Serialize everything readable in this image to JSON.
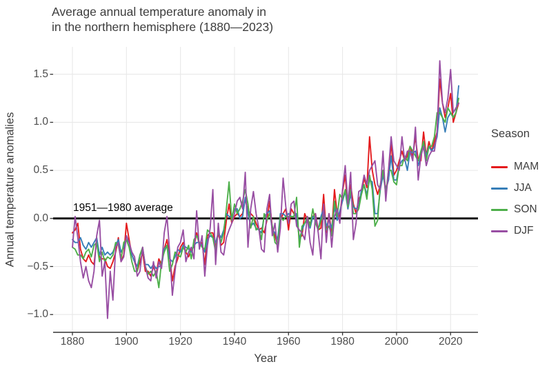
{
  "header": {
    "title_line1": "Average annual temperature anomaly in",
    "title_line2": "in the northern hemisphere (1880—2023)"
  },
  "chart_data": {
    "type": "line",
    "title": "Average annual temperature anomaly in in the northern hemisphere (1880—2023)",
    "xlabel": "Year",
    "ylabel": "Annual temperature anomalies",
    "legend_title": "Season",
    "legend_position": "right",
    "grid": true,
    "xlim": [
      1873,
      2030
    ],
    "ylim": [
      -1.19,
      1.79
    ],
    "x_ticks": [
      1880,
      1900,
      1920,
      1940,
      1960,
      1980,
      2000,
      2020
    ],
    "y_tick_values": [
      1.5,
      1.0,
      0.5,
      0.0,
      -0.5,
      -1.0
    ],
    "y_tick_labels": [
      "1.5",
      "1.0",
      "0.5",
      "0.0",
      "−0.5",
      "−1.0"
    ],
    "reference_line": {
      "y": 0,
      "label": "1951—1980 average",
      "color": "#000000"
    },
    "years": [
      1880,
      1881,
      1882,
      1883,
      1884,
      1885,
      1886,
      1887,
      1888,
      1889,
      1890,
      1891,
      1892,
      1893,
      1894,
      1895,
      1896,
      1897,
      1898,
      1899,
      1900,
      1901,
      1902,
      1903,
      1904,
      1905,
      1906,
      1907,
      1908,
      1909,
      1910,
      1911,
      1912,
      1913,
      1914,
      1915,
      1916,
      1917,
      1918,
      1919,
      1920,
      1921,
      1922,
      1923,
      1924,
      1925,
      1926,
      1927,
      1928,
      1929,
      1930,
      1931,
      1932,
      1933,
      1934,
      1935,
      1936,
      1937,
      1938,
      1939,
      1940,
      1941,
      1942,
      1943,
      1944,
      1945,
      1946,
      1947,
      1948,
      1949,
      1950,
      1951,
      1952,
      1953,
      1954,
      1955,
      1956,
      1957,
      1958,
      1959,
      1960,
      1961,
      1962,
      1963,
      1964,
      1965,
      1966,
      1967,
      1968,
      1969,
      1970,
      1971,
      1972,
      1973,
      1974,
      1975,
      1976,
      1977,
      1978,
      1979,
      1980,
      1981,
      1982,
      1983,
      1984,
      1985,
      1986,
      1987,
      1988,
      1989,
      1990,
      1991,
      1992,
      1993,
      1994,
      1995,
      1996,
      1997,
      1998,
      1999,
      2000,
      2001,
      2002,
      2003,
      2004,
      2005,
      2006,
      2007,
      2008,
      2009,
      2010,
      2011,
      2012,
      2013,
      2014,
      2015,
      2016,
      2017,
      2018,
      2019,
      2020,
      2021,
      2022,
      2023
    ],
    "series": [
      {
        "name": "MAM",
        "color": "#E41A1C",
        "values": [
          -0.15,
          -0.12,
          -0.05,
          -0.32,
          -0.42,
          -0.45,
          -0.38,
          -0.45,
          -0.48,
          -0.22,
          -0.4,
          -0.42,
          -0.42,
          -0.5,
          -0.52,
          -0.45,
          -0.35,
          -0.2,
          -0.45,
          -0.38,
          -0.05,
          -0.22,
          -0.38,
          -0.45,
          -0.55,
          -0.45,
          -0.35,
          -0.55,
          -0.55,
          -0.6,
          -0.5,
          -0.58,
          -0.42,
          -0.48,
          -0.32,
          -0.22,
          -0.4,
          -0.65,
          -0.5,
          -0.42,
          -0.3,
          -0.25,
          -0.35,
          -0.4,
          -0.32,
          -0.3,
          -0.15,
          -0.28,
          -0.25,
          -0.48,
          -0.18,
          -0.15,
          -0.15,
          -0.3,
          -0.15,
          -0.28,
          -0.25,
          -0.02,
          0.15,
          -0.05,
          0.02,
          0.05,
          0.02,
          0.05,
          0.2,
          0.08,
          0.05,
          0.02,
          -0.05,
          -0.12,
          -0.1,
          -0.15,
          -0.02,
          0.18,
          -0.1,
          -0.18,
          -0.28,
          -0.02,
          0.05,
          0.1,
          -0.12,
          0.1,
          0.05,
          0.02,
          -0.2,
          -0.18,
          0.05,
          -0.02,
          -0.05,
          0.02,
          0.05,
          -0.12,
          -0.1,
          0.25,
          -0.15,
          0.05,
          -0.15,
          0.3,
          0.05,
          0.02,
          0.28,
          0.45,
          0.1,
          0.35,
          0.15,
          0.05,
          0.2,
          0.25,
          0.42,
          0.32,
          0.85,
          0.5,
          0.35,
          0.25,
          0.35,
          0.5,
          0.3,
          0.4,
          0.8,
          0.45,
          0.5,
          0.6,
          0.7,
          0.6,
          0.65,
          0.75,
          0.65,
          0.85,
          0.6,
          0.6,
          0.9,
          0.65,
          0.8,
          0.7,
          0.8,
          0.9,
          1.45,
          1.2,
          1.05,
          1.15,
          1.3,
          1.0,
          1.1,
          1.2
        ]
      },
      {
        "name": "JJA",
        "color": "#377EB8",
        "values": [
          -0.22,
          -0.25,
          -0.25,
          -0.2,
          -0.28,
          -0.32,
          -0.25,
          -0.3,
          -0.25,
          -0.2,
          -0.38,
          -0.3,
          -0.38,
          -0.35,
          -0.38,
          -0.35,
          -0.28,
          -0.22,
          -0.35,
          -0.3,
          -0.22,
          -0.25,
          -0.38,
          -0.45,
          -0.5,
          -0.38,
          -0.32,
          -0.48,
          -0.48,
          -0.52,
          -0.48,
          -0.52,
          -0.5,
          -0.5,
          -0.32,
          -0.28,
          -0.42,
          -0.45,
          -0.4,
          -0.32,
          -0.35,
          -0.28,
          -0.3,
          -0.32,
          -0.35,
          -0.28,
          -0.25,
          -0.25,
          -0.28,
          -0.35,
          -0.22,
          -0.18,
          -0.2,
          -0.25,
          -0.15,
          -0.2,
          -0.12,
          0.05,
          0.02,
          0.02,
          0.1,
          0.1,
          0.0,
          0.02,
          0.22,
          0.05,
          -0.08,
          -0.05,
          -0.1,
          -0.12,
          -0.15,
          0.02,
          0.05,
          0.08,
          -0.12,
          -0.15,
          -0.22,
          0.05,
          0.05,
          0.02,
          0.05,
          0.02,
          0.02,
          0.05,
          -0.22,
          -0.12,
          -0.05,
          -0.02,
          -0.1,
          0.02,
          -0.02,
          -0.12,
          0.02,
          0.1,
          -0.08,
          -0.02,
          -0.1,
          0.12,
          -0.02,
          0.08,
          0.18,
          0.28,
          0.1,
          0.25,
          0.12,
          0.1,
          0.12,
          0.3,
          0.35,
          0.25,
          0.4,
          0.38,
          0.05,
          0.05,
          0.3,
          0.45,
          0.3,
          0.4,
          0.65,
          0.4,
          0.4,
          0.55,
          0.6,
          0.62,
          0.5,
          0.7,
          0.68,
          0.7,
          0.55,
          0.65,
          0.8,
          0.65,
          0.75,
          0.7,
          0.75,
          0.85,
          1.15,
          1.05,
          0.9,
          1.05,
          1.1,
          1.05,
          1.1,
          1.38
        ]
      },
      {
        "name": "SON",
        "color": "#4DAF4A",
        "values": [
          -0.3,
          -0.32,
          -0.38,
          -0.38,
          -0.42,
          -0.35,
          -0.32,
          -0.4,
          -0.28,
          -0.25,
          -0.45,
          -0.35,
          -0.45,
          -0.4,
          -0.42,
          -0.38,
          -0.25,
          -0.28,
          -0.42,
          -0.25,
          -0.22,
          -0.3,
          -0.45,
          -0.55,
          -0.55,
          -0.38,
          -0.3,
          -0.5,
          -0.58,
          -0.55,
          -0.6,
          -0.55,
          -0.72,
          -0.45,
          -0.35,
          -0.28,
          -0.55,
          -0.48,
          -0.35,
          -0.38,
          -0.4,
          -0.3,
          -0.35,
          -0.28,
          -0.42,
          -0.22,
          -0.18,
          -0.25,
          -0.3,
          -0.32,
          -0.12,
          -0.15,
          -0.2,
          -0.35,
          -0.12,
          -0.25,
          -0.15,
          0.1,
          0.38,
          -0.02,
          0.15,
          0.05,
          0.1,
          0.18,
          0.3,
          0.15,
          -0.1,
          0.02,
          -0.12,
          -0.1,
          -0.22,
          0.05,
          -0.02,
          0.05,
          -0.08,
          -0.25,
          -0.28,
          0.02,
          -0.02,
          0.02,
          0.02,
          0.02,
          0.02,
          0.22,
          -0.3,
          -0.08,
          -0.05,
          0.02,
          -0.08,
          0.1,
          -0.05,
          -0.12,
          -0.02,
          0.05,
          -0.12,
          -0.08,
          -0.18,
          0.18,
          0.02,
          0.25,
          0.2,
          0.3,
          0.12,
          0.3,
          0.05,
          0.05,
          0.1,
          0.25,
          0.35,
          0.2,
          0.45,
          0.3,
          -0.08,
          -0.02,
          0.35,
          0.5,
          0.25,
          0.5,
          0.5,
          0.38,
          0.35,
          0.55,
          0.55,
          0.65,
          0.6,
          0.75,
          0.7,
          0.65,
          0.6,
          0.7,
          0.8,
          0.6,
          0.75,
          0.75,
          0.85,
          1.1,
          1.1,
          1.05,
          1.0,
          1.15,
          1.1,
          1.05,
          1.1,
          1.25
        ]
      },
      {
        "name": "DJF",
        "color": "#984EA3",
        "values": [
          -0.3,
          0.02,
          -0.2,
          -0.45,
          -0.62,
          -0.5,
          -0.65,
          -0.72,
          -0.55,
          -0.18,
          -0.02,
          -0.6,
          -0.45,
          -1.04,
          -0.55,
          -0.85,
          -0.3,
          -0.25,
          -0.45,
          -0.4,
          -0.18,
          -0.25,
          -0.35,
          -0.4,
          -0.6,
          -0.55,
          -0.3,
          -0.5,
          -0.62,
          -0.65,
          -0.45,
          -0.62,
          -0.45,
          -0.52,
          -0.15,
          0.02,
          -0.35,
          -0.8,
          -0.55,
          -0.3,
          -0.25,
          -0.12,
          -0.45,
          -0.35,
          -0.3,
          -0.42,
          0.08,
          -0.32,
          -0.18,
          -0.6,
          -0.28,
          -0.1,
          0.3,
          -0.48,
          -0.05,
          -0.35,
          -0.38,
          -0.2,
          -0.12,
          -0.05,
          0.05,
          0.18,
          0.22,
          0.1,
          0.48,
          -0.3,
          0.1,
          0.28,
          0.05,
          -0.1,
          -0.32,
          -0.35,
          0.1,
          0.25,
          -0.18,
          -0.05,
          -0.35,
          -0.1,
          0.42,
          0.12,
          -0.05,
          0.15,
          0.18,
          -0.08,
          -0.12,
          -0.15,
          -0.22,
          0.02,
          -0.25,
          -0.38,
          0.05,
          -0.15,
          -0.42,
          0.15,
          -0.25,
          0.05,
          -0.3,
          0.02,
          0.1,
          -0.05,
          0.3,
          0.55,
          0.15,
          0.48,
          -0.22,
          -0.05,
          0.28,
          0.3,
          0.45,
          0.35,
          0.5,
          0.55,
          0.6,
          0.35,
          0.3,
          0.7,
          0.18,
          0.5,
          0.85,
          0.6,
          0.55,
          0.5,
          0.85,
          0.6,
          0.7,
          0.7,
          0.6,
          0.95,
          0.4,
          0.65,
          0.75,
          0.55,
          0.65,
          0.7,
          0.7,
          0.9,
          1.64,
          1.2,
          1.1,
          1.25,
          1.55,
          1.1,
          1.15,
          1.2
        ]
      }
    ]
  }
}
